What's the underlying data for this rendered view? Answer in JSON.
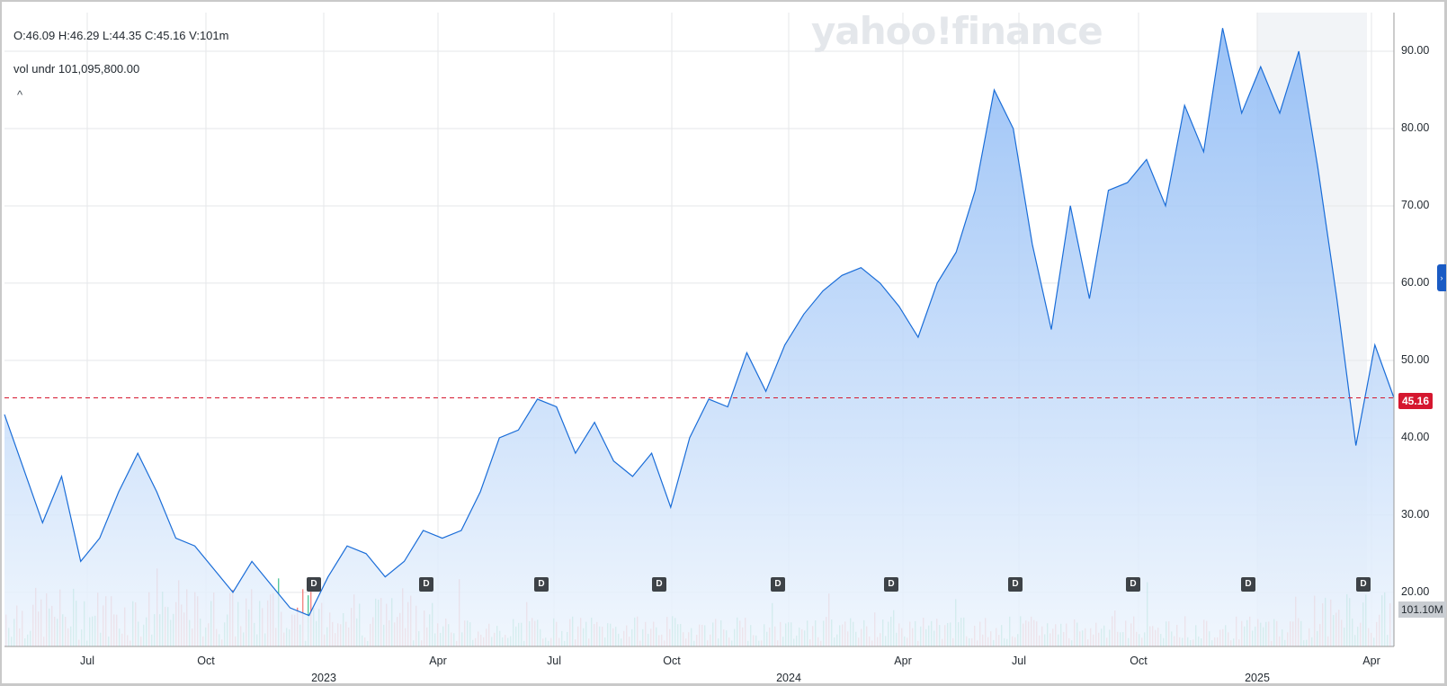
{
  "legend": {
    "ohlc": "O:46.09  H:46.29  L:44.35  C:45.16  V:101m",
    "volume": "vol undr  101,095,800.00",
    "collapse_glyph": "^"
  },
  "watermark": "yahoo!finance",
  "price_badge": "45.16",
  "volume_badge": "101.10M",
  "dividend_label": "D",
  "colors": {
    "line": "#1a6dd8",
    "area_top": "#8ab8f5",
    "area_bottom": "#eef5fd",
    "up_volume": "#23b57e",
    "down_volume": "#f0605c",
    "price_line": "#d5172f",
    "grid": "#e5e7ea"
  },
  "chart_data": {
    "type": "area",
    "y_ticks": [
      "90.00",
      "80.00",
      "70.00",
      "60.00",
      "50.00",
      "40.00",
      "30.00",
      "20.00"
    ],
    "ylim": [
      13,
      95
    ],
    "x_ticks": [
      "Jul",
      "Oct",
      "Apr",
      "Jul",
      "Oct",
      "Apr",
      "Jul",
      "Oct",
      "Apr"
    ],
    "year_labels": [
      "2023",
      "2024",
      "2025"
    ],
    "last_close": 45.16,
    "dividend_markers": 10,
    "grid": true,
    "series": [
      {
        "points": [
          [
            "2022-05",
            43
          ],
          [
            "2022-05",
            36
          ],
          [
            "2022-06",
            29
          ],
          [
            "2022-06",
            35
          ],
          [
            "2022-07",
            24
          ],
          [
            "2022-07",
            27
          ],
          [
            "2022-08",
            33
          ],
          [
            "2022-08",
            38
          ],
          [
            "2022-09",
            33
          ],
          [
            "2022-09",
            27
          ],
          [
            "2022-10",
            26
          ],
          [
            "2022-10",
            23
          ],
          [
            "2022-11",
            20
          ],
          [
            "2022-11",
            24
          ],
          [
            "2022-12",
            21
          ],
          [
            "2022-12",
            18
          ],
          [
            "2023-01",
            17
          ],
          [
            "2023-01",
            22
          ],
          [
            "2023-02",
            26
          ],
          [
            "2023-02",
            25
          ],
          [
            "2023-03",
            22
          ],
          [
            "2023-03",
            24
          ],
          [
            "2023-04",
            28
          ],
          [
            "2023-04",
            27
          ],
          [
            "2023-05",
            28
          ],
          [
            "2023-05",
            33
          ],
          [
            "2023-06",
            40
          ],
          [
            "2023-06",
            41
          ],
          [
            "2023-07",
            45
          ],
          [
            "2023-07",
            44
          ],
          [
            "2023-08",
            38
          ],
          [
            "2023-08",
            42
          ],
          [
            "2023-09",
            37
          ],
          [
            "2023-09",
            35
          ],
          [
            "2023-10",
            38
          ],
          [
            "2023-10",
            31
          ],
          [
            "2023-11",
            40
          ],
          [
            "2023-11",
            45
          ],
          [
            "2023-12",
            44
          ],
          [
            "2023-12",
            51
          ],
          [
            "2024-01",
            46
          ],
          [
            "2024-01",
            52
          ],
          [
            "2024-02",
            56
          ],
          [
            "2024-02",
            59
          ],
          [
            "2024-03",
            61
          ],
          [
            "2024-03",
            62
          ],
          [
            "2024-04",
            60
          ],
          [
            "2024-04",
            57
          ],
          [
            "2024-05",
            53
          ],
          [
            "2024-05",
            60
          ],
          [
            "2024-06",
            64
          ],
          [
            "2024-06",
            72
          ],
          [
            "2024-07",
            85
          ],
          [
            "2024-07",
            80
          ],
          [
            "2024-08",
            65
          ],
          [
            "2024-08",
            54
          ],
          [
            "2024-09",
            70
          ],
          [
            "2024-09",
            58
          ],
          [
            "2024-10",
            72
          ],
          [
            "2024-10",
            73
          ],
          [
            "2024-11",
            76
          ],
          [
            "2024-11",
            70
          ],
          [
            "2024-12",
            83
          ],
          [
            "2024-12",
            77
          ],
          [
            "2025-01",
            93
          ],
          [
            "2025-01",
            82
          ],
          [
            "2025-02",
            88
          ],
          [
            "2025-02",
            82
          ],
          [
            "2025-03",
            90
          ],
          [
            "2025-03",
            75
          ],
          [
            "2025-04",
            58
          ],
          [
            "2025-04",
            39
          ],
          [
            "2025-04",
            52
          ],
          [
            "2025-04",
            45.16
          ]
        ]
      }
    ]
  }
}
